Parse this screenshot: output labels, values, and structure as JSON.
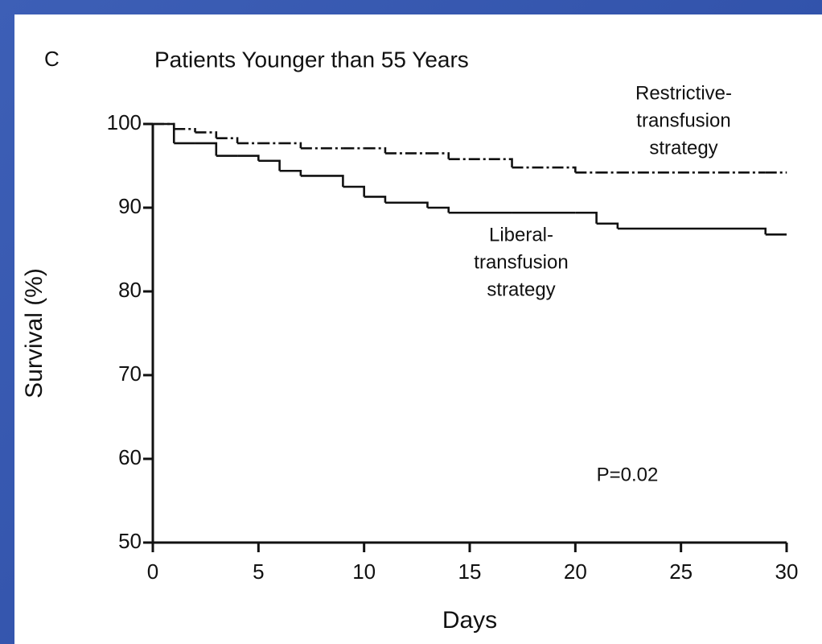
{
  "chart_data": {
    "type": "line",
    "step": "post",
    "panel_label": "C",
    "title": "Patients Younger than 55 Years",
    "x_label": "Days",
    "y_label": "Survival (%)",
    "x": [
      0,
      1,
      2,
      3,
      4,
      5,
      6,
      7,
      9,
      10,
      11,
      13,
      14,
      17,
      20,
      21,
      22,
      29,
      30
    ],
    "series": [
      {
        "name": "Restrictive-transfusion strategy",
        "color": "#111111",
        "dash": "dashdot",
        "values": [
          100,
          99.4,
          99.0,
          98.3,
          97.7,
          97.7,
          97.7,
          97.1,
          97.1,
          97.1,
          96.5,
          96.5,
          95.8,
          94.8,
          94.2,
          94.2,
          94.2,
          94.2,
          94.2
        ]
      },
      {
        "name": "Liberal-transfusion strategy",
        "color": "#111111",
        "dash": "solid",
        "values": [
          100,
          97.7,
          97.7,
          96.2,
          96.2,
          95.6,
          94.4,
          93.8,
          92.5,
          91.3,
          90.6,
          90.0,
          89.4,
          89.4,
          89.4,
          88.1,
          87.5,
          86.8,
          86.8
        ]
      }
    ],
    "annotations": [
      {
        "lines": [
          "Restrictive-",
          "transfusion",
          "strategy"
        ]
      },
      {
        "lines": [
          "Liberal-",
          "transfusion",
          "strategy"
        ]
      },
      {
        "lines": [
          "P=0.02"
        ]
      }
    ],
    "xlim": [
      0,
      30
    ],
    "xticks": [
      0,
      5,
      10,
      15,
      20,
      25,
      30
    ],
    "ylim": [
      50,
      100
    ],
    "yticks": [
      50,
      60,
      70,
      80,
      90,
      100
    ],
    "grid": false
  }
}
